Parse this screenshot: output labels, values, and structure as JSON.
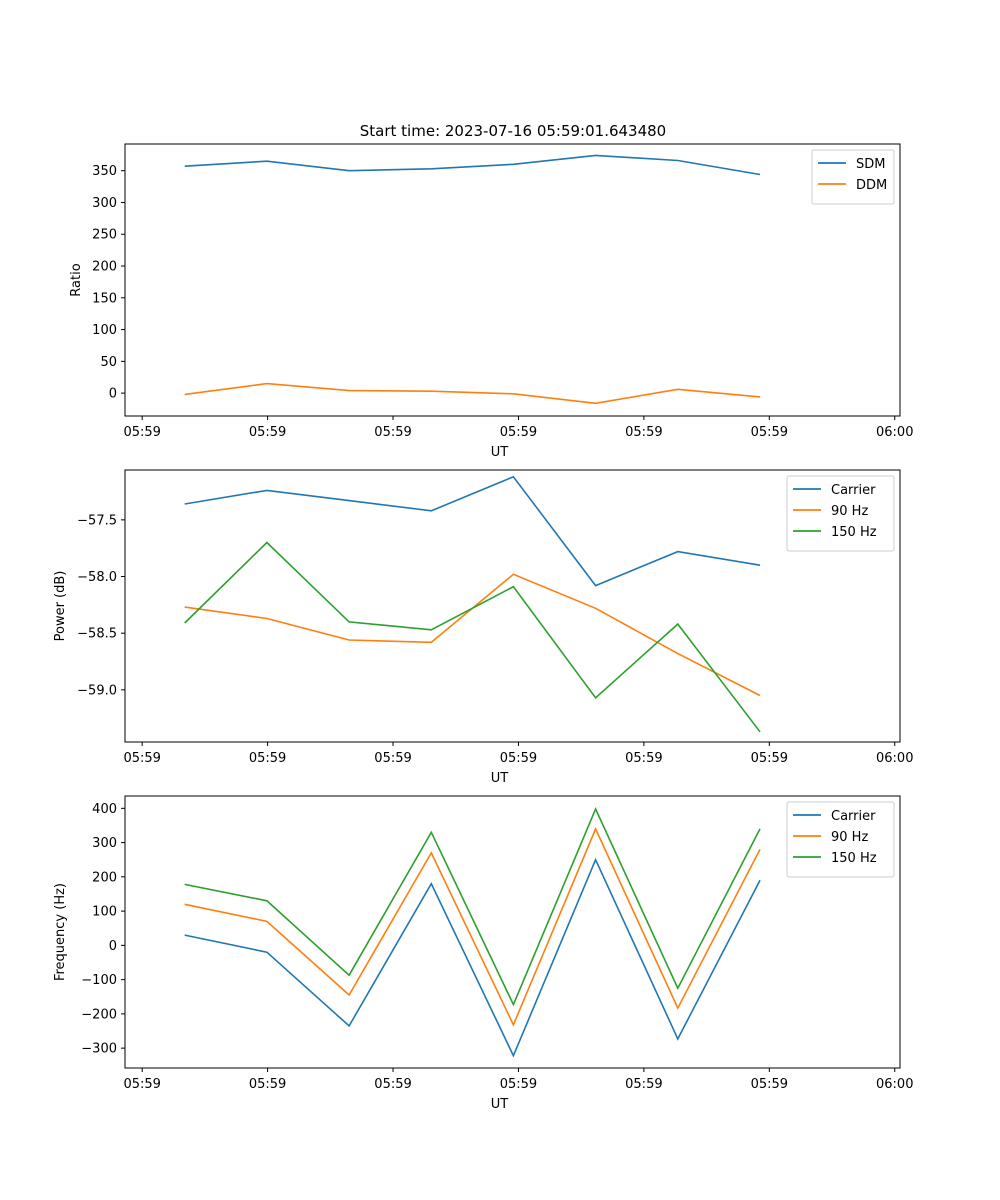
{
  "figure": {
    "title": "Start time: 2023-07-16 05:59:01.643480"
  },
  "colors": {
    "blue": "#1f77b4",
    "orange": "#ff7f0e",
    "green": "#2ca02c"
  },
  "chart_data": [
    {
      "type": "line",
      "title": "Start time: 2023-07-16 05:59:01.643480",
      "xlabel": "UT",
      "ylabel": "Ratio",
      "x": [
        1,
        2,
        3,
        4,
        5,
        6,
        7,
        8
      ],
      "xlim": [
        0.274,
        9.703
      ],
      "x_ticks": [
        0.483,
        2.009,
        3.535,
        5.061,
        6.587,
        8.113,
        9.639
      ],
      "x_tick_labels": [
        "05:59",
        "05:59",
        "05:59",
        "05:59",
        "05:59",
        "05:59",
        "06:00"
      ],
      "ylim": [
        -36,
        392
      ],
      "y_ticks": [
        0,
        50,
        100,
        150,
        200,
        250,
        300,
        350
      ],
      "y_tick_labels": [
        "0",
        "50",
        "100",
        "150",
        "200",
        "250",
        "300",
        "350"
      ],
      "legend": "upper right",
      "series": [
        {
          "name": "SDM",
          "color": "#1f77b4",
          "values": [
            357,
            365,
            350,
            353,
            360,
            374,
            366,
            344
          ]
        },
        {
          "name": "DDM",
          "color": "#ff7f0e",
          "values": [
            -2,
            15,
            4,
            3,
            -1,
            -16,
            6,
            -6
          ]
        }
      ]
    },
    {
      "type": "line",
      "title": "",
      "xlabel": "UT",
      "ylabel": "Power (dB)",
      "x": [
        1,
        2,
        3,
        4,
        5,
        6,
        7,
        8
      ],
      "xlim": [
        0.274,
        9.703
      ],
      "x_ticks": [
        0.483,
        2.009,
        3.535,
        5.061,
        6.587,
        8.113,
        9.639
      ],
      "x_tick_labels": [
        "05:59",
        "05:59",
        "05:59",
        "05:59",
        "05:59",
        "05:59",
        "06:00"
      ],
      "ylim": [
        -59.46,
        -57.06
      ],
      "y_ticks": [
        -57.5,
        -58.0,
        -58.5,
        -59.0
      ],
      "y_tick_labels": [
        "−57.5",
        "−58.0",
        "−58.5",
        "−59.0"
      ],
      "legend": "upper right",
      "series": [
        {
          "name": "Carrier",
          "color": "#1f77b4",
          "values": [
            -57.36,
            -57.24,
            -57.33,
            -57.42,
            -57.12,
            -58.08,
            -57.78,
            -57.9
          ]
        },
        {
          "name": "90 Hz",
          "color": "#ff7f0e",
          "values": [
            -58.27,
            -58.37,
            -58.56,
            -58.58,
            -57.98,
            -58.28,
            -58.68,
            -59.05
          ]
        },
        {
          "name": "150 Hz",
          "color": "#2ca02c",
          "values": [
            -58.41,
            -57.7,
            -58.4,
            -58.47,
            -58.09,
            -59.07,
            -58.42,
            -59.37
          ]
        }
      ]
    },
    {
      "type": "line",
      "title": "",
      "xlabel": "UT",
      "ylabel": "Frequency (Hz)",
      "x": [
        1,
        2,
        3,
        4,
        5,
        6,
        7,
        8
      ],
      "xlim": [
        0.274,
        9.703
      ],
      "x_ticks": [
        0.483,
        2.009,
        3.535,
        5.061,
        6.587,
        8.113,
        9.639
      ],
      "x_tick_labels": [
        "05:59",
        "05:59",
        "05:59",
        "05:59",
        "05:59",
        "05:59",
        "06:00"
      ],
      "ylim": [
        -358,
        436
      ],
      "y_ticks": [
        -300,
        -200,
        -100,
        0,
        100,
        200,
        300,
        400
      ],
      "y_tick_labels": [
        "−300",
        "−200",
        "−100",
        "0",
        "100",
        "200",
        "300",
        "400"
      ],
      "legend": "upper right",
      "series": [
        {
          "name": "Carrier",
          "color": "#1f77b4",
          "values": [
            30,
            -20,
            -235,
            180,
            -322,
            250,
            -273,
            190
          ]
        },
        {
          "name": "90 Hz",
          "color": "#ff7f0e",
          "values": [
            120,
            70,
            -145,
            270,
            -232,
            340,
            -183,
            280
          ]
        },
        {
          "name": "150 Hz",
          "color": "#2ca02c",
          "values": [
            178,
            130,
            -87,
            330,
            -173,
            398,
            -125,
            340
          ]
        }
      ]
    }
  ]
}
